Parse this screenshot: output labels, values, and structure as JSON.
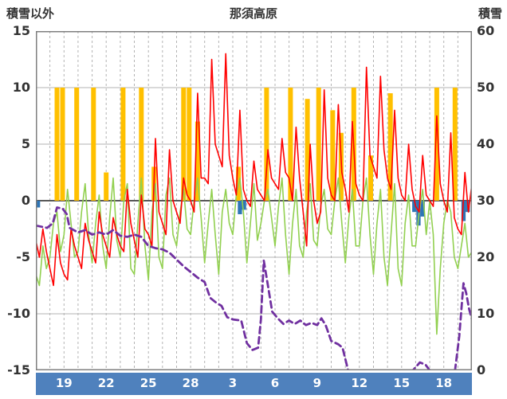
{
  "chart_data": {
    "type": "line",
    "title": "那須高原",
    "left_axis": {
      "label": "積雪以外",
      "min": -15,
      "max": 15,
      "ticks": [
        15,
        10,
        5,
        0,
        -5,
        -10,
        -15
      ]
    },
    "right_axis": {
      "label": "積雪",
      "min": 0,
      "max": 60,
      "ticks": [
        60,
        50,
        40,
        30,
        20,
        10,
        0
      ]
    },
    "x_axis": {
      "min": 0,
      "max": 31,
      "day_gridlines": true,
      "ticks": [
        {
          "d": 2,
          "label": "19"
        },
        {
          "d": 5,
          "label": "22"
        },
        {
          "d": 8,
          "label": "25"
        },
        {
          "d": 11,
          "label": "28"
        },
        {
          "d": 14,
          "label": "3"
        },
        {
          "d": 17,
          "label": "6"
        },
        {
          "d": 20,
          "label": "9"
        },
        {
          "d": 23,
          "label": "12"
        },
        {
          "d": 26,
          "label": "15"
        },
        {
          "d": 29,
          "label": "18"
        }
      ]
    },
    "style": {
      "grid": "#b3b3b3",
      "zero_line": "#595959",
      "frame": "#7f7f7f",
      "band_bg": "#4f81bd",
      "band_text": "#ffffff"
    },
    "series": [
      {
        "name": "orange-bars",
        "type": "bar",
        "color": "#ffc000",
        "bar_width": 0.34,
        "bars": [
          [
            1.5,
            10
          ],
          [
            1.9,
            10
          ],
          [
            2.9,
            10
          ],
          [
            4.1,
            10
          ],
          [
            5.0,
            2.5
          ],
          [
            6.2,
            10
          ],
          [
            7.5,
            10
          ],
          [
            8.4,
            3
          ],
          [
            10.5,
            10
          ],
          [
            10.9,
            10
          ],
          [
            11.5,
            7
          ],
          [
            14.4,
            3
          ],
          [
            16.4,
            10
          ],
          [
            18.1,
            10
          ],
          [
            19.3,
            9
          ],
          [
            20.1,
            10
          ],
          [
            21.1,
            8
          ],
          [
            21.7,
            6
          ],
          [
            22.6,
            10
          ],
          [
            23.8,
            4
          ],
          [
            25.2,
            9.5
          ],
          [
            28.5,
            10
          ],
          [
            29.8,
            10
          ]
        ]
      },
      {
        "name": "blue-bars",
        "type": "bar",
        "color": "#2e75b6",
        "bar_width": 0.3,
        "bars": [
          [
            0.15,
            -0.6
          ],
          [
            14.5,
            -1.2
          ],
          [
            14.8,
            -0.8
          ],
          [
            26.9,
            -1.0
          ],
          [
            27.2,
            -2.2
          ],
          [
            27.5,
            -1.4
          ],
          [
            30.4,
            -1.8
          ],
          [
            30.7,
            -1.0
          ]
        ]
      },
      {
        "name": "green-line",
        "type": "line",
        "color": "#92d050",
        "width": 1.6,
        "x_start": 0,
        "x_step": 0.25,
        "values": [
          -6.5,
          -7.5,
          -4,
          -6,
          -5,
          -2,
          -1,
          -4.5,
          -3,
          1,
          -2,
          -5,
          -4.5,
          -1,
          1.5,
          -3,
          -5.5,
          -2,
          0.5,
          -4,
          -6,
          -1.5,
          2,
          -3.5,
          -5,
          0,
          1.5,
          -6,
          -6.5,
          -2,
          2,
          -4,
          -7,
          -1,
          1.5,
          -5,
          -6,
          0.5,
          2,
          -3,
          -4,
          -1,
          1,
          -2.5,
          -3,
          0,
          2,
          -1.5,
          -5.5,
          -2,
          1,
          -3,
          -6.5,
          -1,
          1,
          -2,
          -3,
          0.5,
          2,
          -1,
          -5.5,
          -2,
          1.5,
          -3.5,
          -2,
          0,
          1,
          -1.5,
          -4,
          -0.5,
          2,
          -3,
          -6.5,
          -2,
          1,
          -4,
          -5,
          -1,
          1.5,
          -3.5,
          -4,
          -0.5,
          1,
          -2.5,
          -3,
          0,
          2,
          -2,
          -5.5,
          -1.5,
          1,
          -4,
          -4,
          0,
          2,
          -3,
          -6.5,
          -2,
          1,
          -5,
          -7.5,
          -3,
          1.5,
          -6,
          -7.5,
          -2,
          0.5,
          -4,
          -4,
          -1,
          1,
          -3,
          0,
          -3,
          -11.8,
          -6,
          -2,
          0,
          -1,
          -5,
          -6,
          -4,
          -2,
          -5,
          -4.5
        ]
      },
      {
        "name": "red-line",
        "type": "line",
        "color": "#ff0000",
        "width": 1.6,
        "x_start": 0,
        "x_step": 0.25,
        "values": [
          -3.5,
          -5,
          -2.5,
          -4.5,
          -6,
          -7.5,
          -3,
          -5.5,
          -6.5,
          -7,
          -2.5,
          -4,
          -5,
          -6,
          -2,
          -3.5,
          -4.5,
          -5.5,
          -1,
          -3,
          -4,
          -5,
          -1.5,
          -3,
          -4,
          -4.5,
          1,
          -2,
          -3.5,
          -5,
          0.5,
          -2.5,
          -3,
          -4,
          5.5,
          -1,
          -2,
          -3,
          4.5,
          0,
          -1,
          -2,
          2,
          0.5,
          0,
          -1,
          9.5,
          2,
          2,
          1.5,
          12.5,
          5,
          4,
          3,
          13,
          4,
          2,
          0.5,
          8,
          1,
          0,
          -0.5,
          3.5,
          1,
          0.5,
          0,
          4.5,
          2,
          1.5,
          1,
          5.5,
          2.5,
          2,
          0,
          6.5,
          2,
          -1,
          -4,
          5,
          0,
          -2,
          -1,
          9.8,
          2,
          0.5,
          0,
          8.5,
          2.5,
          1,
          -1,
          7,
          1.5,
          0.5,
          0,
          11.8,
          4,
          3,
          2,
          11,
          4.5,
          2,
          1,
          8,
          2,
          0.5,
          0,
          5,
          1,
          -0.5,
          -1,
          4,
          0.5,
          0,
          -0.5,
          7.5,
          1.5,
          0,
          -1,
          6,
          -1.5,
          -2.5,
          -3,
          2.5,
          -1,
          1.5
        ]
      },
      {
        "name": "purple-line",
        "type": "line",
        "color": "#7030a0",
        "width": 2.8,
        "dash": "8 5",
        "points": [
          [
            0,
            -2.2
          ],
          [
            0.8,
            -2.4
          ],
          [
            1.2,
            -2.0
          ],
          [
            1.5,
            -0.6
          ],
          [
            1.9,
            -0.7
          ],
          [
            2.2,
            -1.2
          ],
          [
            2.4,
            -2.4
          ],
          [
            3,
            -2.8
          ],
          [
            3.5,
            -2.6
          ],
          [
            4,
            -3.0
          ],
          [
            4.5,
            -2.8
          ],
          [
            5,
            -3.0
          ],
          [
            5.5,
            -2.6
          ],
          [
            6,
            -3.1
          ],
          [
            6.5,
            -3.2
          ],
          [
            7,
            -3.0
          ],
          [
            7.5,
            -3.2
          ],
          [
            8,
            -4.0
          ],
          [
            8.5,
            -4.2
          ],
          [
            9,
            -4.3
          ],
          [
            9.5,
            -4.6
          ],
          [
            10,
            -5.2
          ],
          [
            10.5,
            -5.8
          ],
          [
            11,
            -6.3
          ],
          [
            11.5,
            -6.8
          ],
          [
            12,
            -7.2
          ],
          [
            12.4,
            -8.6
          ],
          [
            12.8,
            -9.0
          ],
          [
            13.2,
            -9.3
          ],
          [
            13.6,
            -10.3
          ],
          [
            14,
            -10.5
          ],
          [
            14.6,
            -10.6
          ],
          [
            15,
            -12.6
          ],
          [
            15.4,
            -13.2
          ],
          [
            15.8,
            -13.0
          ],
          [
            16.0,
            -10.5
          ],
          [
            16.2,
            -5.3
          ],
          [
            16.5,
            -7.5
          ],
          [
            16.8,
            -9.8
          ],
          [
            17.2,
            -10.4
          ],
          [
            17.6,
            -10.9
          ],
          [
            18,
            -10.6
          ],
          [
            18.4,
            -10.9
          ],
          [
            18.8,
            -10.6
          ],
          [
            19.2,
            -11.0
          ],
          [
            19.6,
            -10.8
          ],
          [
            20,
            -11.0
          ],
          [
            20.3,
            -10.4
          ],
          [
            20.6,
            -11.0
          ],
          [
            21,
            -12.4
          ],
          [
            21.5,
            -12.7
          ],
          [
            21.8,
            -13.0
          ],
          [
            22.2,
            -15
          ],
          [
            23,
            -15
          ],
          [
            24,
            -15
          ],
          [
            25,
            -15
          ],
          [
            26,
            -15
          ],
          [
            26.8,
            -15
          ],
          [
            27.3,
            -14.3
          ],
          [
            27.7,
            -14.5
          ],
          [
            28,
            -15
          ],
          [
            29,
            -15
          ],
          [
            29.8,
            -15
          ],
          [
            30.1,
            -12
          ],
          [
            30.4,
            -7.3
          ],
          [
            30.6,
            -8.2
          ],
          [
            30.8,
            -9.6
          ],
          [
            31,
            -10.5
          ]
        ]
      }
    ]
  }
}
